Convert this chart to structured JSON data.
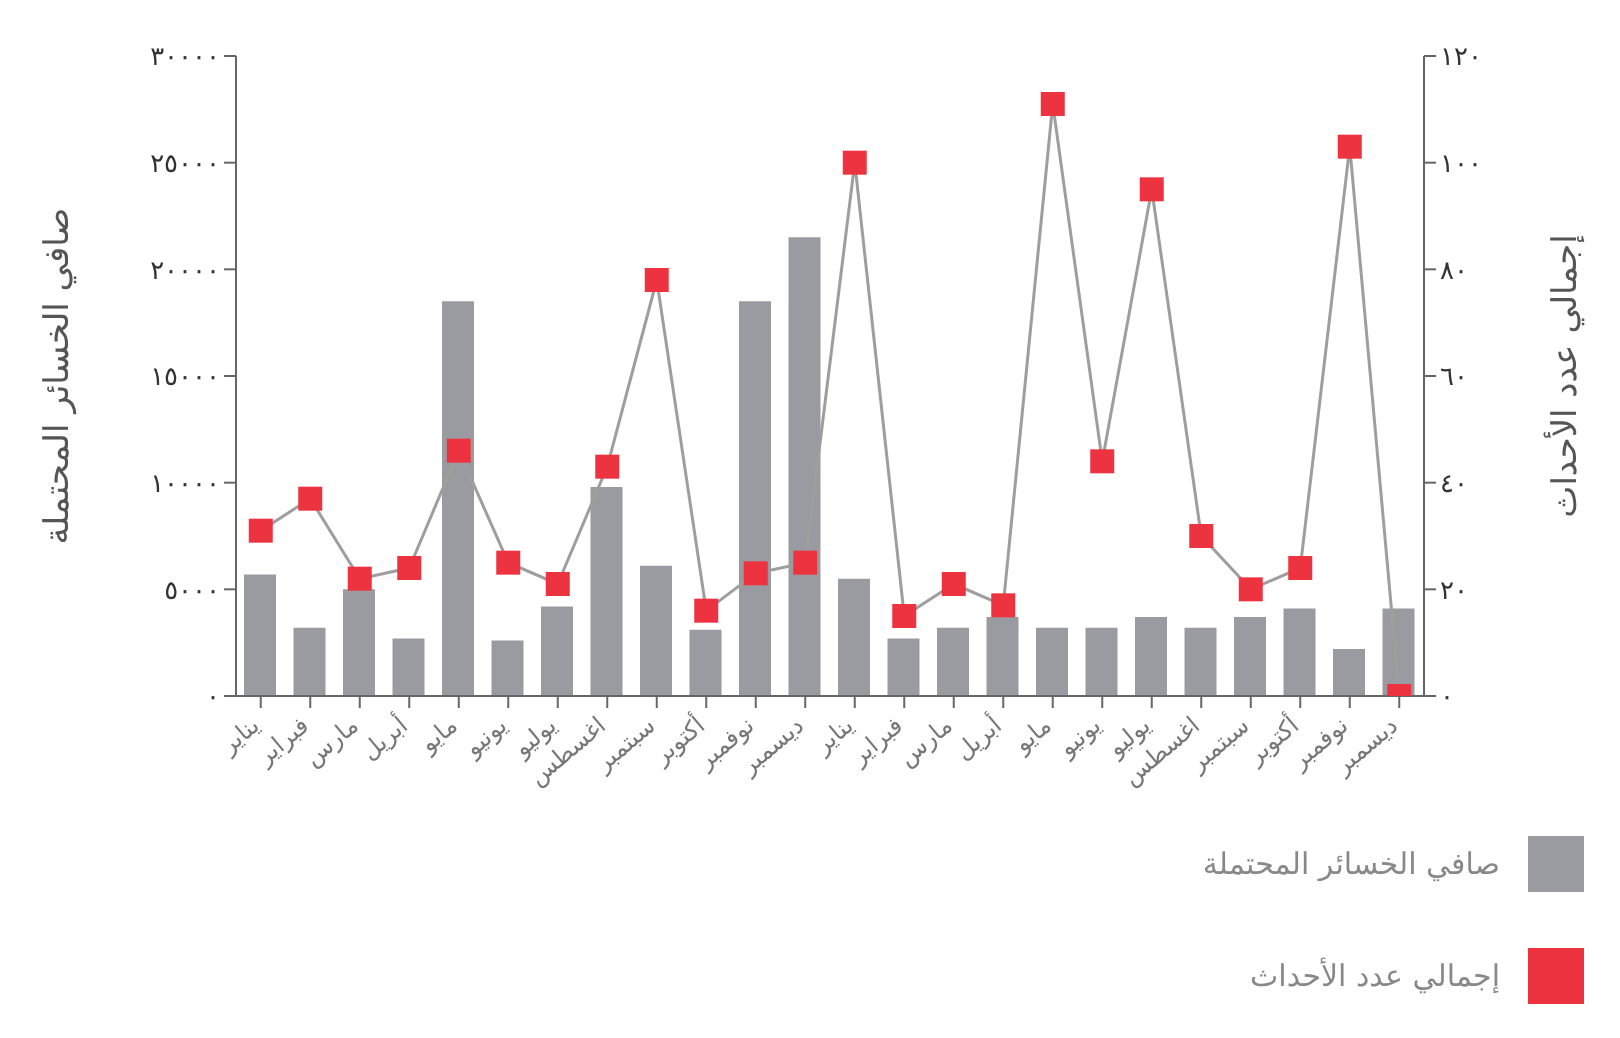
{
  "chart_data": {
    "type": "bar",
    "ylabel": "صافي الخسائر المحتملة",
    "y2label": "إجمالي عدد الأحداث",
    "categories": [
      "يناير",
      "فبراير",
      "مارس",
      "أبريل",
      "مايو",
      "يونيو",
      "يوليو",
      "اغسطس",
      "سبتمبر",
      "أكتوبر",
      "نوفمبر",
      "ديسمبر",
      "يناير",
      "فبراير",
      "مارس",
      "أبريل",
      "مايو",
      "يونيو",
      "يوليو",
      "اغسطس",
      "سبتمبر",
      "أكتوبر",
      "نوفمبر",
      "ديسمبر"
    ],
    "series": [
      {
        "name": "صافي الخسائر المحتملة",
        "color": "#9a9ba0",
        "values": [
          5700,
          3200,
          5000,
          2700,
          18500,
          2600,
          4200,
          9800,
          6100,
          3100,
          18500,
          21500,
          5500,
          2700,
          3200,
          3700,
          3200,
          3200,
          3700,
          3200,
          3700,
          4100,
          2200,
          4100
        ]
      },
      {
        "name": "إجمالي عدد الأحداث",
        "type": "line",
        "axis": "y2",
        "color": "#ee3340",
        "values": [
          31,
          37,
          22,
          24,
          46,
          25,
          21,
          43,
          78,
          16,
          23,
          25,
          100,
          15,
          21,
          17,
          111,
          44,
          95,
          30,
          20,
          24,
          103,
          0
        ]
      }
    ],
    "ylim": [
      0,
      30000
    ],
    "yticks": [
      {
        "value": 0,
        "label": "٠"
      },
      {
        "value": 5000,
        "label": "٥٠٠٠"
      },
      {
        "value": 10000,
        "label": "١٠٠٠٠"
      },
      {
        "value": 15000,
        "label": "١٥٠٠٠"
      },
      {
        "value": 20000,
        "label": "٢٠٠٠٠"
      },
      {
        "value": 25000,
        "label": "٢٥٠٠٠"
      },
      {
        "value": 30000,
        "label": "٣٠٠٠٠"
      }
    ],
    "y2lim": [
      0,
      120
    ],
    "y2ticks": [
      {
        "value": 0,
        "label": "٠"
      },
      {
        "value": 20,
        "label": "٢٠"
      },
      {
        "value": 40,
        "label": "٤٠"
      },
      {
        "value": 60,
        "label": "٦٠"
      },
      {
        "value": 80,
        "label": "٨٠"
      },
      {
        "value": 100,
        "label": "١٠٠"
      },
      {
        "value": 120,
        "label": "١٢٠"
      }
    ],
    "marker": "square",
    "grid": false,
    "legend": "bottom right"
  }
}
